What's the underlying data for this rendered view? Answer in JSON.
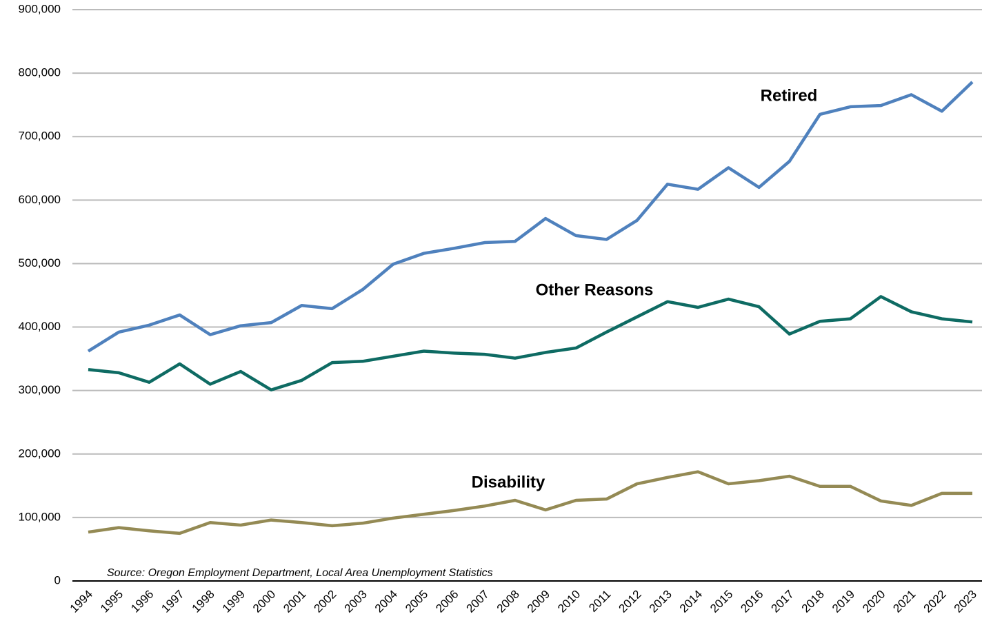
{
  "chart_data": {
    "type": "line",
    "categories": [
      "1994",
      "1995",
      "1996",
      "1997",
      "1998",
      "1999",
      "2000",
      "2001",
      "2002",
      "2003",
      "2004",
      "2005",
      "2006",
      "2007",
      "2008",
      "2009",
      "2010",
      "2011",
      "2012",
      "2013",
      "2014",
      "2015",
      "2016",
      "2017",
      "2018",
      "2019",
      "2020",
      "2021",
      "2022",
      "2023"
    ],
    "series": [
      {
        "name": "Retired",
        "color": "#4f81bd",
        "values": [
          362000,
          392000,
          403000,
          419000,
          388000,
          402000,
          407000,
          434000,
          429000,
          459000,
          499000,
          516000,
          524000,
          533000,
          535000,
          571000,
          544000,
          538000,
          568000,
          625000,
          617000,
          651000,
          620000,
          661000,
          735000,
          747000,
          749000,
          766000,
          740000,
          786000
        ]
      },
      {
        "name": "Other Reasons",
        "color": "#0e6b63",
        "values": [
          333000,
          328000,
          313000,
          342000,
          310000,
          330000,
          301000,
          316000,
          344000,
          346000,
          354000,
          362000,
          359000,
          357000,
          351000,
          360000,
          367000,
          392000,
          416000,
          440000,
          431000,
          444000,
          432000,
          389000,
          409000,
          413000,
          448000,
          424000,
          413000,
          408000
        ]
      },
      {
        "name": "Disability",
        "color": "#948a54",
        "values": [
          77000,
          84000,
          79000,
          75000,
          92000,
          88000,
          96000,
          92000,
          87000,
          91000,
          99000,
          105000,
          111000,
          118000,
          127000,
          112000,
          127000,
          129000,
          153000,
          163000,
          172000,
          153000,
          158000,
          165000,
          149000,
          149000,
          126000,
          119000,
          138000,
          138000
        ]
      }
    ],
    "ylim": [
      0,
      900000
    ],
    "yticks": [
      0,
      {
        "value": 100000,
        "label": "100,000"
      },
      {
        "value": 200000,
        "label": "200,000"
      },
      {
        "value": 300000,
        "label": "300,000"
      },
      {
        "value": 400000,
        "label": "400,000"
      },
      {
        "value": 500000,
        "label": "500,000"
      },
      {
        "value": 600000,
        "label": "600,000"
      },
      {
        "value": 700000,
        "label": "700,000"
      },
      {
        "value": 800000,
        "label": "800,000"
      },
      {
        "value": 900000,
        "label": "900,000"
      }
    ],
    "grid": true,
    "annotation": "Source: Oregon Employment Department, Local Area Unemployment Statistics"
  }
}
